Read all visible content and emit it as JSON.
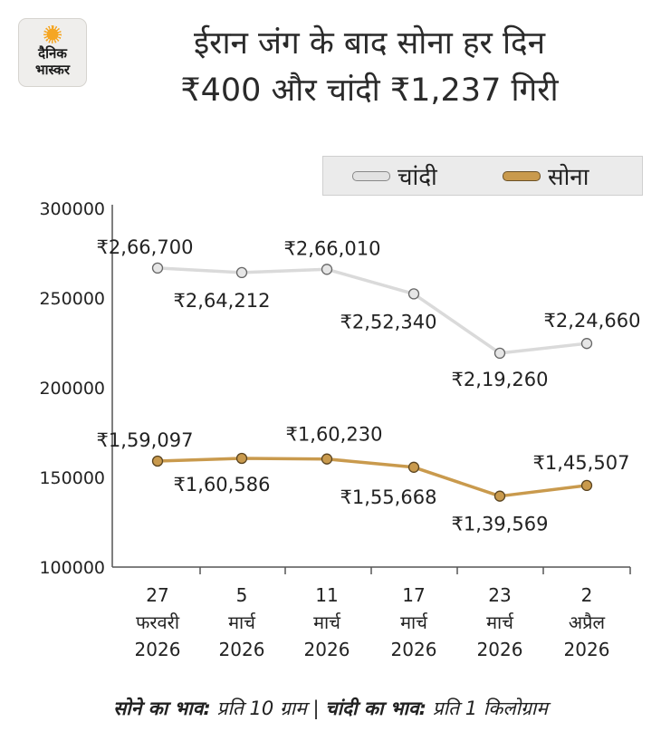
{
  "brand": {
    "line1": "दैनिक",
    "line2": "भास्कर"
  },
  "title_line1": "ईरान जंग के बाद सोना हर दिन",
  "title_line2": "₹400 और चांदी ₹1,237 गिरी",
  "colors": {
    "silver": "#e2e2e2",
    "gold": "#c99a4d",
    "axis": "#555555"
  },
  "footer": {
    "gold_label": "सोने का भाव:",
    "gold_unit": "प्रति 10 ग्राम |",
    "silver_label": "चांदी का भाव:",
    "silver_unit": "प्रति 1 किलोग्राम"
  },
  "chart_data": {
    "type": "line",
    "title": "",
    "xlabel": "",
    "ylabel": "",
    "ylim": [
      100000,
      300000
    ],
    "yticks": [
      "300000",
      "250000",
      "200000",
      "150000",
      "100000"
    ],
    "categories": [
      [
        "27",
        "फरवरी",
        "2026"
      ],
      [
        "5",
        "मार्च",
        "2026"
      ],
      [
        "11",
        "मार्च",
        "2026"
      ],
      [
        "17",
        "मार्च",
        "2026"
      ],
      [
        "23",
        "मार्च",
        "2026"
      ],
      [
        "2",
        "अप्रैल",
        "2026"
      ]
    ],
    "legend_position": "top-right",
    "series": [
      {
        "name": "चांदी",
        "color": "#e2e2e2",
        "values": [
          266700,
          264212,
          266010,
          252340,
          219260,
          224660
        ],
        "labels": [
          "₹2,66,700",
          "₹2,64,212",
          "₹2,66,010",
          "₹2,52,340",
          "₹2,19,260",
          "₹2,24,660"
        ]
      },
      {
        "name": "सोना",
        "color": "#c99a4d",
        "values": [
          159097,
          160586,
          160230,
          155668,
          139569,
          145507
        ],
        "labels": [
          "₹1,59,097",
          "₹1,60,586",
          "₹1,60,230",
          "₹1,55,668",
          "₹1,39,569",
          "₹1,45,507"
        ]
      }
    ]
  }
}
